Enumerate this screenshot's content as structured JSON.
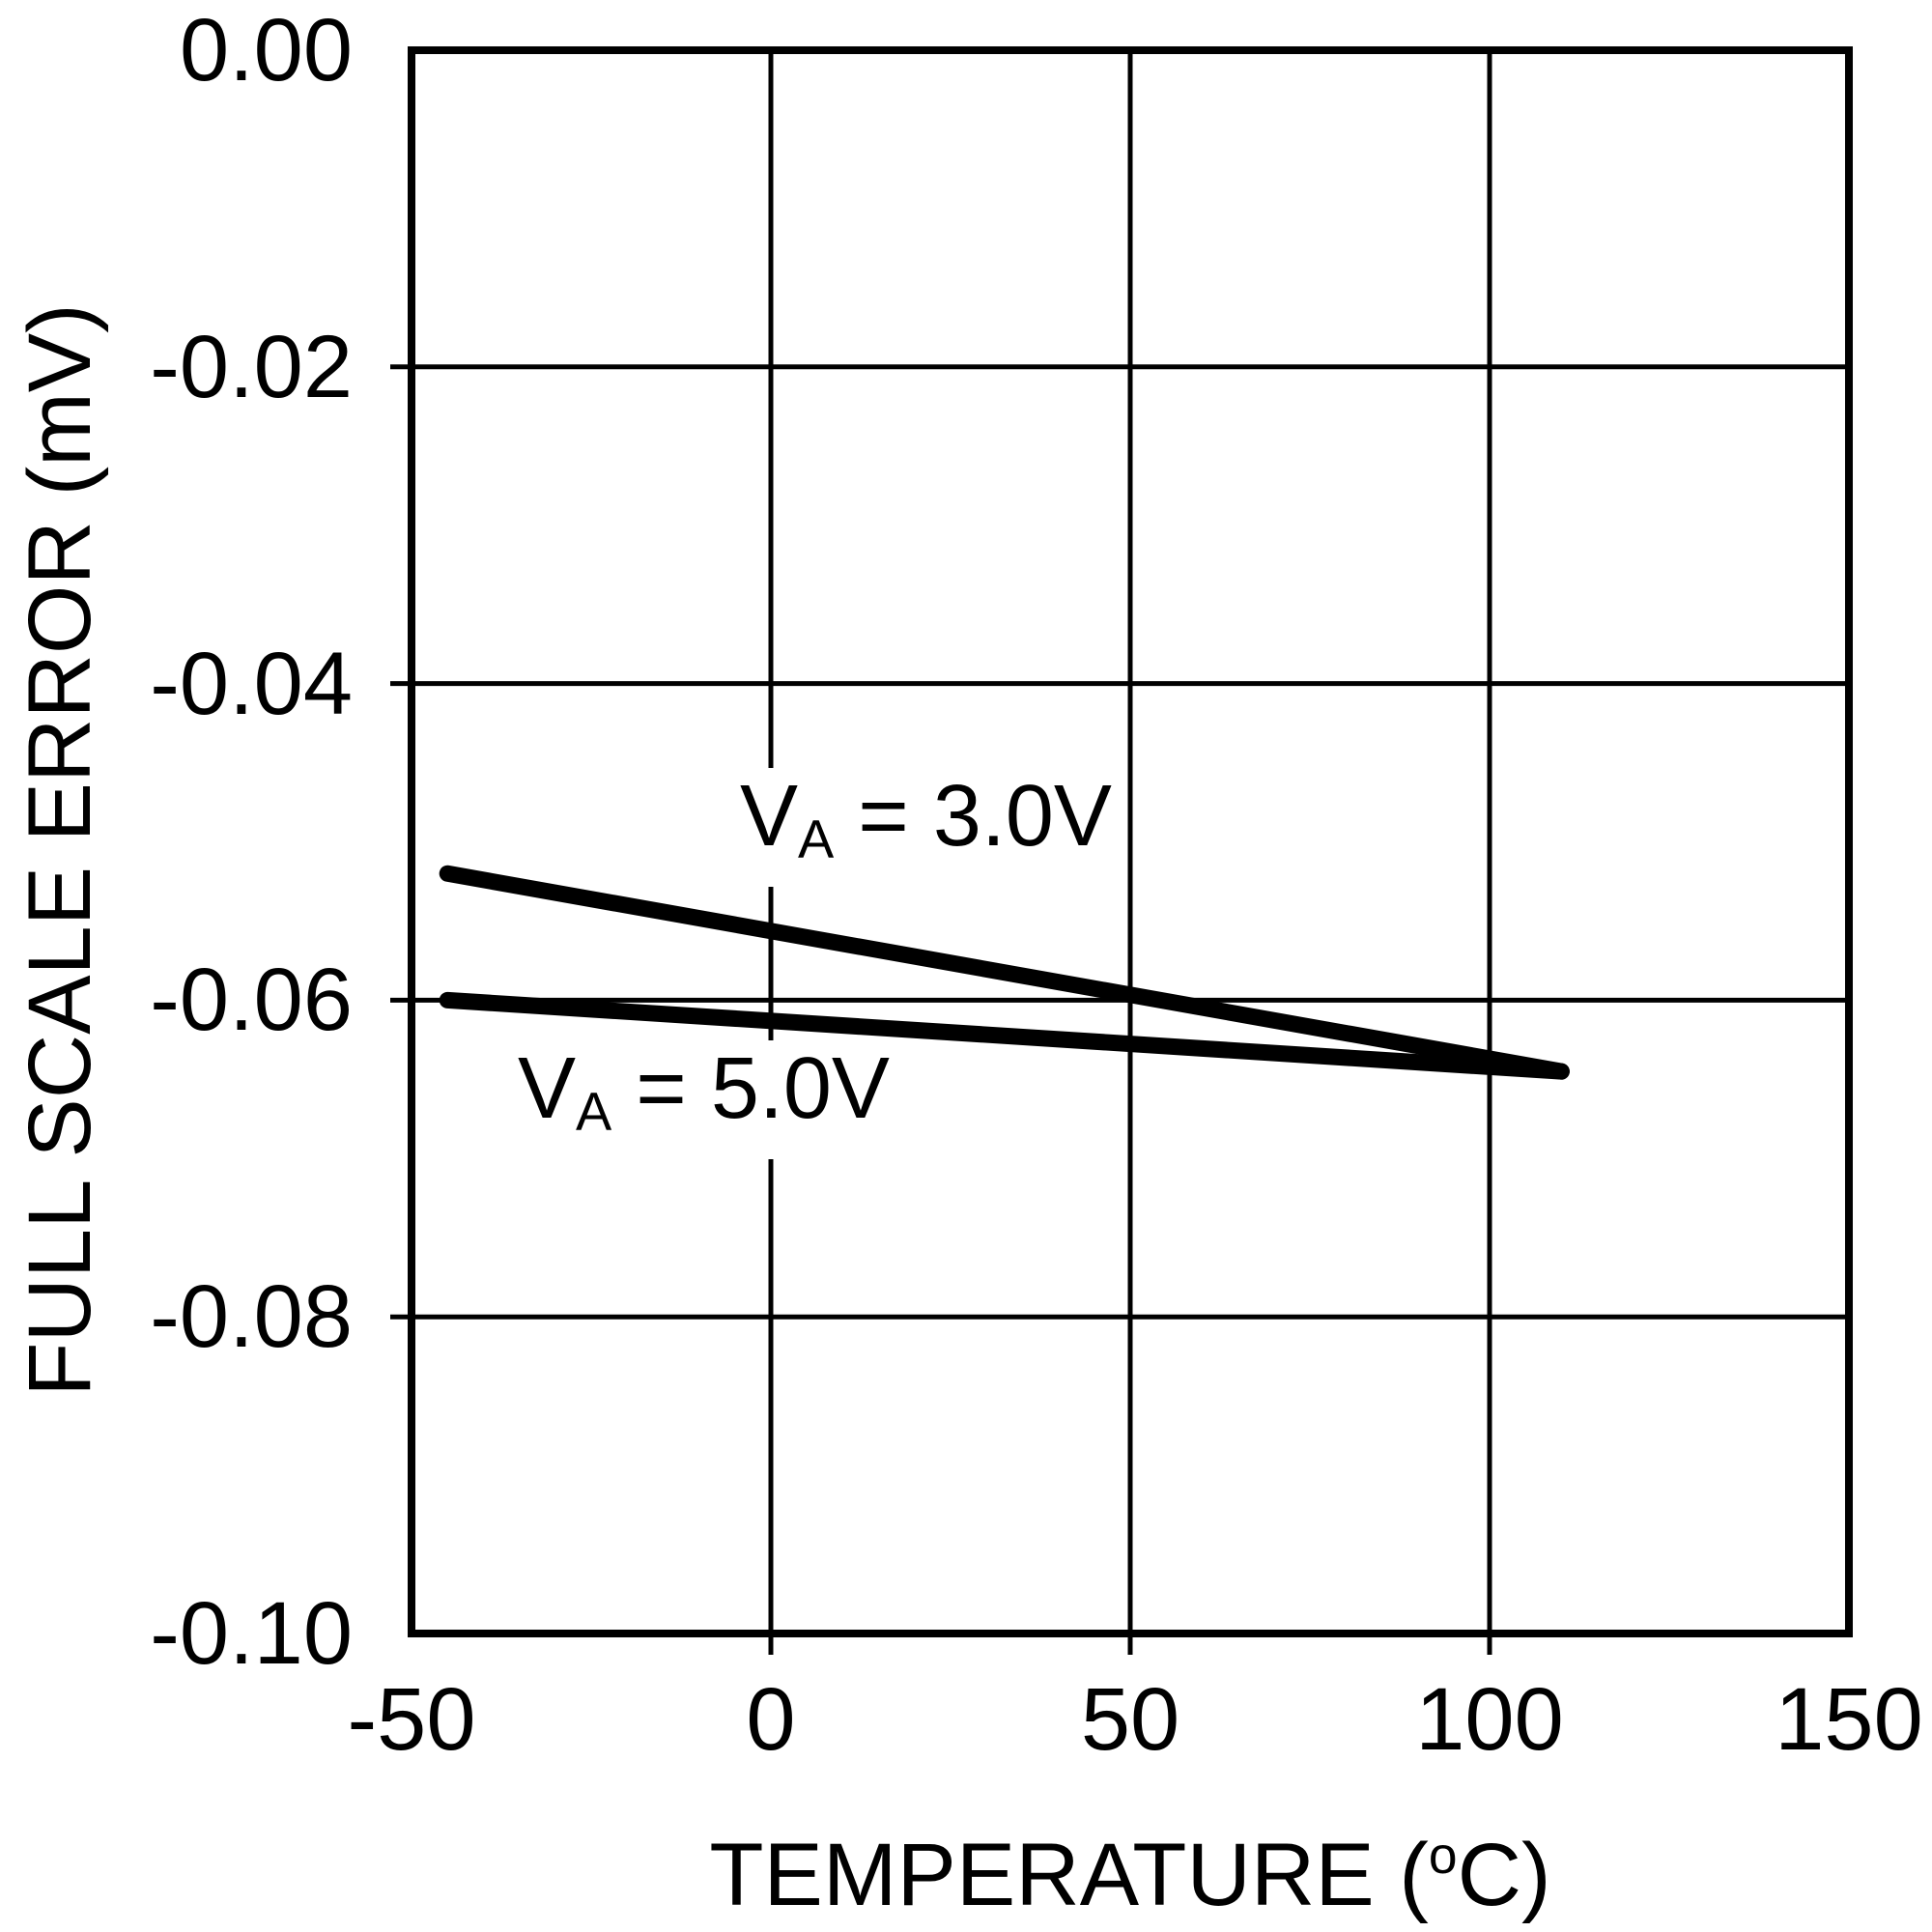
{
  "figure": {
    "background": "#ffffff",
    "ink": "#000000"
  },
  "chart_data": {
    "type": "line",
    "title": "",
    "xlabel": "TEMPERATURE (°C)",
    "xlabel_parts": {
      "pre": "TEMPERATURE (",
      "sup": "o",
      "post": "C)"
    },
    "ylabel": "FULL SCALE ERROR (mV)",
    "xlim": [
      -50,
      150
    ],
    "ylim": [
      -0.1,
      0.0
    ],
    "xticks": [
      -50,
      0,
      50,
      100,
      150
    ],
    "xtick_labels": [
      "-50",
      "0",
      "50",
      "100",
      "150"
    ],
    "yticks": [
      0.0,
      -0.02,
      -0.04,
      -0.06,
      -0.08,
      -0.1
    ],
    "ytick_labels": [
      "0.00",
      "-0.02",
      "-0.04",
      "-0.06",
      "-0.08",
      "-0.10"
    ],
    "grid": true,
    "legend_position": "inline-annotations",
    "line_color": "#000000",
    "series": [
      {
        "name": "VA = 3.0V",
        "label_parts": {
          "main": "V",
          "sub": "A",
          "rest": " = 3.0V"
        },
        "points": [
          [
            -45,
            -0.052
          ],
          [
            110,
            -0.0645
          ]
        ]
      },
      {
        "name": "VA = 5.0V",
        "label_parts": {
          "main": "V",
          "sub": "A",
          "rest": " = 5.0V"
        },
        "points": [
          [
            -45,
            -0.06
          ],
          [
            110,
            -0.0645
          ]
        ]
      }
    ]
  }
}
